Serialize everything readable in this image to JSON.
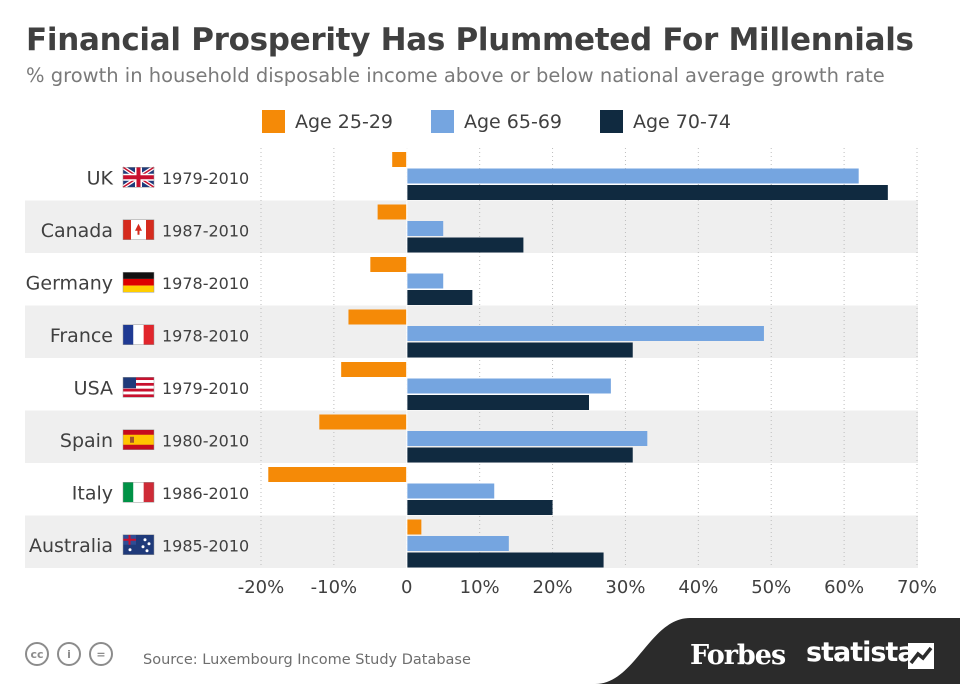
{
  "chart_data": {
    "type": "bar",
    "orientation": "horizontal",
    "title": "Financial Prosperity Has Plummeted For Millennials",
    "subtitle": "% growth in household disposable income above or below national average growth rate",
    "categories": [
      {
        "country": "UK",
        "period": "1979-2010",
        "flag": "uk-flag-icon"
      },
      {
        "country": "Canada",
        "period": "1987-2010",
        "flag": "canada-flag-icon"
      },
      {
        "country": "Germany",
        "period": "1978-2010",
        "flag": "germany-flag-icon"
      },
      {
        "country": "France",
        "period": "1978-2010",
        "flag": "france-flag-icon"
      },
      {
        "country": "USA",
        "period": "1979-2010",
        "flag": "usa-flag-icon"
      },
      {
        "country": "Spain",
        "period": "1980-2010",
        "flag": "spain-flag-icon"
      },
      {
        "country": "Italy",
        "period": "1986-2010",
        "flag": "italy-flag-icon"
      },
      {
        "country": "Australia",
        "period": "1985-2010",
        "flag": "australia-flag-icon"
      }
    ],
    "series": [
      {
        "name": "Age 25-29",
        "color": "#f58a07",
        "values": [
          -2,
          -4,
          -5,
          -8,
          -9,
          -12,
          -19,
          2
        ]
      },
      {
        "name": "Age 65-69",
        "color": "#75a5e0",
        "values": [
          62,
          5,
          5,
          49,
          28,
          33,
          12,
          14
        ]
      },
      {
        "name": "Age 70-74",
        "color": "#102a40",
        "values": [
          66,
          16,
          9,
          31,
          25,
          31,
          20,
          27
        ]
      }
    ],
    "xlim": [
      -20,
      70
    ],
    "xticks": [
      -20,
      -10,
      0,
      10,
      20,
      30,
      40,
      50,
      60,
      70
    ],
    "xtick_labels": [
      "-20%",
      "-10%",
      "0",
      "10%",
      "20%",
      "30%",
      "40%",
      "50%",
      "60%",
      "70%"
    ],
    "legend_position": "top",
    "grid": "vertical dotted"
  },
  "footer": {
    "source": "Source: Luxembourg Income Study Database",
    "cc_icons": [
      "cc",
      "i",
      "="
    ],
    "brand_forbes": "Forbes",
    "brand_statista": "statista"
  },
  "colors": {
    "title": "#404040",
    "band": "#efefef",
    "footer_band": "#2b2b2b"
  }
}
